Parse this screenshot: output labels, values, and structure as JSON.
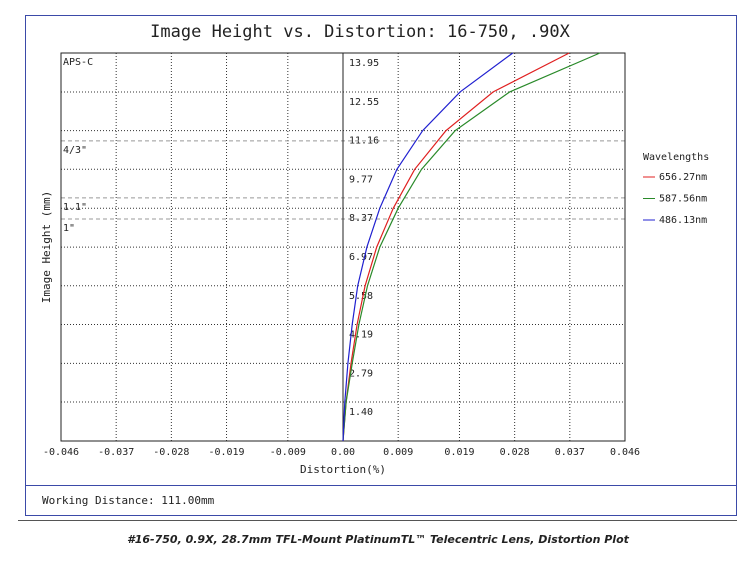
{
  "chart_data": {
    "type": "line",
    "title": "Image Height vs. Distortion: 16-750, .90X",
    "x_label": "Distortion(%)",
    "y_label": "Image Height (mm)",
    "xlim": [
      -0.046,
      0.046
    ],
    "xticks": [
      -0.046,
      -0.037,
      -0.028,
      -0.019,
      -0.009,
      {
        "value": 0,
        "label": "0.00"
      },
      0.009,
      0.019,
      0.028,
      0.037,
      0.046
    ],
    "ylim": [
      0,
      13.95
    ],
    "yticks": [
      {
        "value": 1.4,
        "label": "1.40"
      },
      2.79,
      4.19,
      5.58,
      6.97,
      8.37,
      9.77,
      11.16,
      12.55,
      13.95
    ],
    "grid": true,
    "legend_title": "Wavelengths",
    "y": [
      0,
      1.4,
      2.79,
      4.19,
      5.58,
      6.97,
      8.37,
      9.77,
      11.16,
      12.55,
      13.95
    ],
    "series": [
      {
        "name": "656.27nm",
        "color": "#e02020",
        "x": [
          0,
          0.0005,
          0.0013,
          0.0023,
          0.0036,
          0.0055,
          0.0082,
          0.0117,
          0.0168,
          0.0245,
          0.0369
        ]
      },
      {
        "name": "587.56nm",
        "color": "#2a8a2a",
        "x": [
          0,
          0.0005,
          0.0015,
          0.0026,
          0.004,
          0.006,
          0.009,
          0.0128,
          0.0183,
          0.0272,
          0.0419
        ]
      },
      {
        "name": "486.13nm",
        "color": "#2020d0",
        "x": [
          0,
          0.0003,
          0.0008,
          0.0015,
          0.0024,
          0.0039,
          0.006,
          0.0088,
          0.013,
          0.0191,
          0.0277
        ]
      }
    ],
    "annotations": [
      {
        "text": "APS-C",
        "y": 13.95
      },
      {
        "text": "4/3\"",
        "y": 10.79
      },
      {
        "text": "1.1\"",
        "y": 8.74
      },
      {
        "text": "1\"",
        "y": 7.98
      }
    ]
  },
  "footer": {
    "working_distance": "Working Distance: 111.00mm",
    "caption": "#16-750, 0.9X, 28.7mm TFL-Mount PlatinumTL™ Telecentric Lens, Distortion Plot"
  }
}
